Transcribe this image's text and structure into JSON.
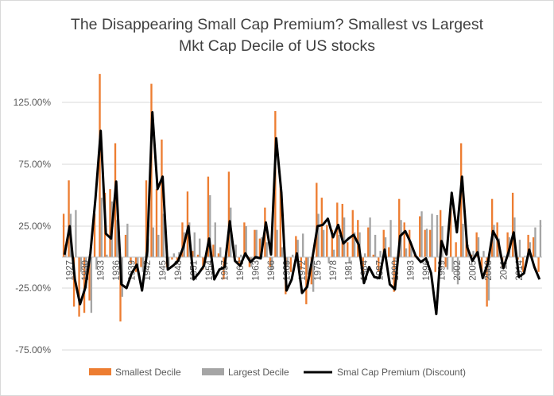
{
  "chart_data": {
    "type": "bar+line",
    "title": "The Disappearing Small Cap Premium? Smallest vs Largest",
    "subtitle": "Mkt Cap Decile of US stocks",
    "y_axis": {
      "ticks": [
        125,
        75,
        25,
        -25,
        -75
      ],
      "tick_labels": [
        "125.00%",
        "75.00%",
        "25.00%",
        "-25.00%",
        "-75.00%"
      ],
      "range": [
        -75,
        150
      ],
      "unit": "percent"
    },
    "x_axis": {
      "range": [
        1926,
        2018
      ],
      "tick_labels": [
        "1927",
        "1930",
        "1933",
        "1936",
        "1939",
        "1942",
        "1945",
        "1948",
        "1951",
        "1954",
        "1957",
        "1960",
        "1963",
        "1966",
        "1969",
        "1972",
        "1975",
        "1978",
        "1981",
        "1984",
        "1987",
        "1990",
        "1993",
        "1996",
        "1999",
        "2002",
        "2005",
        "2008",
        "2011",
        "2014"
      ]
    },
    "grid": true,
    "legend_position": "bottom",
    "colors": {
      "smallest": "#ed7d31",
      "largest": "#a5a5a5",
      "premium": "#000000"
    },
    "series": [
      {
        "name": "Smallest Decile",
        "kind": "bar",
        "values": [
          [
            1926,
            35
          ],
          [
            1927,
            62
          ],
          [
            1928,
            -40
          ],
          [
            1929,
            -48
          ],
          [
            1930,
            -45
          ],
          [
            1931,
            -35
          ],
          [
            1932,
            35
          ],
          [
            1933,
            148
          ],
          [
            1934,
            52
          ],
          [
            1935,
            55
          ],
          [
            1936,
            92
          ],
          [
            1937,
            -52
          ],
          [
            1938,
            18
          ],
          [
            1939,
            -5
          ],
          [
            1940,
            -12
          ],
          [
            1941,
            -8
          ],
          [
            1942,
            62
          ],
          [
            1943,
            140
          ],
          [
            1944,
            55
          ],
          [
            1945,
            95
          ],
          [
            1946,
            -8
          ],
          [
            1947,
            -2
          ],
          [
            1948,
            -5
          ],
          [
            1949,
            28
          ],
          [
            1950,
            53
          ],
          [
            1951,
            5
          ],
          [
            1952,
            2
          ],
          [
            1953,
            -10
          ],
          [
            1954,
            65
          ],
          [
            1955,
            10
          ],
          [
            1956,
            3
          ],
          [
            1957,
            -18
          ],
          [
            1958,
            69
          ],
          [
            1959,
            5
          ],
          [
            1960,
            -5
          ],
          [
            1961,
            28
          ],
          [
            1962,
            -8
          ],
          [
            1963,
            22
          ],
          [
            1964,
            15
          ],
          [
            1965,
            40
          ],
          [
            1966,
            -8
          ],
          [
            1967,
            118
          ],
          [
            1968,
            58
          ],
          [
            1969,
            -30
          ],
          [
            1970,
            -12
          ],
          [
            1971,
            17
          ],
          [
            1972,
            -10
          ],
          [
            1973,
            -38
          ],
          [
            1974,
            -22
          ],
          [
            1975,
            60
          ],
          [
            1976,
            48
          ],
          [
            1977,
            26
          ],
          [
            1978,
            22
          ],
          [
            1979,
            44
          ],
          [
            1980,
            43
          ],
          [
            1981,
            12
          ],
          [
            1982,
            38
          ],
          [
            1983,
            30
          ],
          [
            1984,
            -18
          ],
          [
            1985,
            24
          ],
          [
            1986,
            2
          ],
          [
            1987,
            -12
          ],
          [
            1988,
            22
          ],
          [
            1989,
            8
          ],
          [
            1990,
            -28
          ],
          [
            1991,
            47
          ],
          [
            1992,
            28
          ],
          [
            1993,
            22
          ],
          [
            1994,
            2
          ],
          [
            1995,
            33
          ],
          [
            1996,
            22
          ],
          [
            1997,
            22
          ],
          [
            1998,
            -12
          ],
          [
            1999,
            38
          ],
          [
            2000,
            -8
          ],
          [
            2001,
            40
          ],
          [
            2002,
            12
          ],
          [
            2003,
            92
          ],
          [
            2004,
            18
          ],
          [
            2005,
            2
          ],
          [
            2006,
            20
          ],
          [
            2007,
            -12
          ],
          [
            2008,
            -40
          ],
          [
            2009,
            47
          ],
          [
            2010,
            28
          ],
          [
            2011,
            -8
          ],
          [
            2012,
            20
          ],
          [
            2013,
            52
          ],
          [
            2014,
            -2
          ],
          [
            2015,
            -12
          ],
          [
            2016,
            18
          ],
          [
            2017,
            16
          ],
          [
            2018,
            -12
          ]
        ]
      },
      {
        "name": "Largest Decile",
        "kind": "bar",
        "values": [
          [
            1926,
            10
          ],
          [
            1927,
            35
          ],
          [
            1928,
            38
          ],
          [
            1929,
            -12
          ],
          [
            1930,
            -25
          ],
          [
            1931,
            -45
          ],
          [
            1932,
            -10
          ],
          [
            1933,
            48
          ],
          [
            1934,
            2
          ],
          [
            1935,
            45
          ],
          [
            1936,
            30
          ],
          [
            1937,
            -32
          ],
          [
            1938,
            27
          ],
          [
            1939,
            0
          ],
          [
            1940,
            -10
          ],
          [
            1941,
            -12
          ],
          [
            1942,
            15
          ],
          [
            1943,
            24
          ],
          [
            1944,
            18
          ],
          [
            1945,
            35
          ],
          [
            1946,
            -7
          ],
          [
            1947,
            3
          ],
          [
            1948,
            4
          ],
          [
            1949,
            20
          ],
          [
            1950,
            28
          ],
          [
            1951,
            20
          ],
          [
            1952,
            15
          ],
          [
            1953,
            -2
          ],
          [
            1954,
            50
          ],
          [
            1955,
            28
          ],
          [
            1956,
            8
          ],
          [
            1957,
            -10
          ],
          [
            1958,
            40
          ],
          [
            1959,
            10
          ],
          [
            1960,
            2
          ],
          [
            1961,
            25
          ],
          [
            1962,
            -8
          ],
          [
            1963,
            22
          ],
          [
            1964,
            16
          ],
          [
            1965,
            12
          ],
          [
            1966,
            -10
          ],
          [
            1967,
            22
          ],
          [
            1968,
            8
          ],
          [
            1969,
            -8
          ],
          [
            1970,
            2
          ],
          [
            1971,
            14
          ],
          [
            1972,
            19
          ],
          [
            1973,
            -14
          ],
          [
            1974,
            -28
          ],
          [
            1975,
            35
          ],
          [
            1976,
            22
          ],
          [
            1977,
            -5
          ],
          [
            1978,
            6
          ],
          [
            1979,
            18
          ],
          [
            1980,
            32
          ],
          [
            1981,
            -5
          ],
          [
            1982,
            20
          ],
          [
            1983,
            20
          ],
          [
            1984,
            3
          ],
          [
            1985,
            32
          ],
          [
            1986,
            18
          ],
          [
            1987,
            5
          ],
          [
            1988,
            16
          ],
          [
            1989,
            30
          ],
          [
            1990,
            -2
          ],
          [
            1991,
            30
          ],
          [
            1992,
            7
          ],
          [
            1993,
            10
          ],
          [
            1994,
            1
          ],
          [
            1995,
            37
          ],
          [
            1996,
            23
          ],
          [
            1997,
            35
          ],
          [
            1998,
            34
          ],
          [
            1999,
            25
          ],
          [
            2000,
            -10
          ],
          [
            2001,
            -12
          ],
          [
            2002,
            -22
          ],
          [
            2003,
            27
          ],
          [
            2004,
            10
          ],
          [
            2005,
            5
          ],
          [
            2006,
            16
          ],
          [
            2007,
            5
          ],
          [
            2008,
            -35
          ],
          [
            2009,
            26
          ],
          [
            2010,
            15
          ],
          [
            2011,
            1
          ],
          [
            2012,
            16
          ],
          [
            2013,
            32
          ],
          [
            2014,
            14
          ],
          [
            2015,
            1
          ],
          [
            2016,
            12
          ],
          [
            2017,
            24
          ],
          [
            2018,
            30
          ]
        ]
      },
      {
        "name": "Smal Cap Premium (Discount)",
        "kind": "line",
        "values": [
          [
            1926,
            2
          ],
          [
            1927,
            25
          ],
          [
            1928,
            -18
          ],
          [
            1929,
            -38
          ],
          [
            1930,
            -25
          ],
          [
            1931,
            3
          ],
          [
            1932,
            48
          ],
          [
            1933,
            102
          ],
          [
            1934,
            19
          ],
          [
            1935,
            15
          ],
          [
            1936,
            61
          ],
          [
            1937,
            -22
          ],
          [
            1938,
            -25
          ],
          [
            1939,
            -13
          ],
          [
            1940,
            -6
          ],
          [
            1941,
            -27
          ],
          [
            1942,
            5
          ],
          [
            1943,
            117
          ],
          [
            1944,
            55
          ],
          [
            1945,
            65
          ],
          [
            1946,
            -10
          ],
          [
            1947,
            -7
          ],
          [
            1948,
            -3
          ],
          [
            1949,
            8
          ],
          [
            1950,
            25
          ],
          [
            1951,
            -18
          ],
          [
            1952,
            -13
          ],
          [
            1953,
            -7
          ],
          [
            1954,
            15
          ],
          [
            1955,
            -18
          ],
          [
            1956,
            -10
          ],
          [
            1957,
            -8
          ],
          [
            1958,
            29
          ],
          [
            1959,
            -3
          ],
          [
            1960,
            -7
          ],
          [
            1961,
            3
          ],
          [
            1962,
            -4
          ],
          [
            1963,
            0
          ],
          [
            1964,
            -1
          ],
          [
            1965,
            28
          ],
          [
            1966,
            2
          ],
          [
            1967,
            96
          ],
          [
            1968,
            52
          ],
          [
            1969,
            -27
          ],
          [
            1970,
            -18
          ],
          [
            1971,
            3
          ],
          [
            1972,
            -29
          ],
          [
            1973,
            -24
          ],
          [
            1974,
            -1
          ],
          [
            1975,
            25
          ],
          [
            1976,
            26
          ],
          [
            1977,
            31
          ],
          [
            1978,
            16
          ],
          [
            1979,
            26
          ],
          [
            1980,
            11
          ],
          [
            1981,
            15
          ],
          [
            1982,
            18
          ],
          [
            1983,
            10
          ],
          [
            1984,
            -21
          ],
          [
            1985,
            -8
          ],
          [
            1986,
            -16
          ],
          [
            1987,
            -17
          ],
          [
            1988,
            6
          ],
          [
            1989,
            -22
          ],
          [
            1990,
            -26
          ],
          [
            1991,
            17
          ],
          [
            1992,
            21
          ],
          [
            1993,
            12
          ],
          [
            1994,
            1
          ],
          [
            1995,
            -4
          ],
          [
            1996,
            -1
          ],
          [
            1997,
            -13
          ],
          [
            1998,
            -46
          ],
          [
            1999,
            13
          ],
          [
            2000,
            2
          ],
          [
            2001,
            52
          ],
          [
            2002,
            20
          ],
          [
            2003,
            65
          ],
          [
            2004,
            8
          ],
          [
            2005,
            -3
          ],
          [
            2006,
            4
          ],
          [
            2007,
            -17
          ],
          [
            2008,
            -5
          ],
          [
            2009,
            21
          ],
          [
            2010,
            13
          ],
          [
            2011,
            -9
          ],
          [
            2012,
            4
          ],
          [
            2013,
            20
          ],
          [
            2014,
            -16
          ],
          [
            2015,
            -13
          ],
          [
            2016,
            6
          ],
          [
            2017,
            -8
          ],
          [
            2018,
            -18
          ]
        ]
      }
    ]
  }
}
